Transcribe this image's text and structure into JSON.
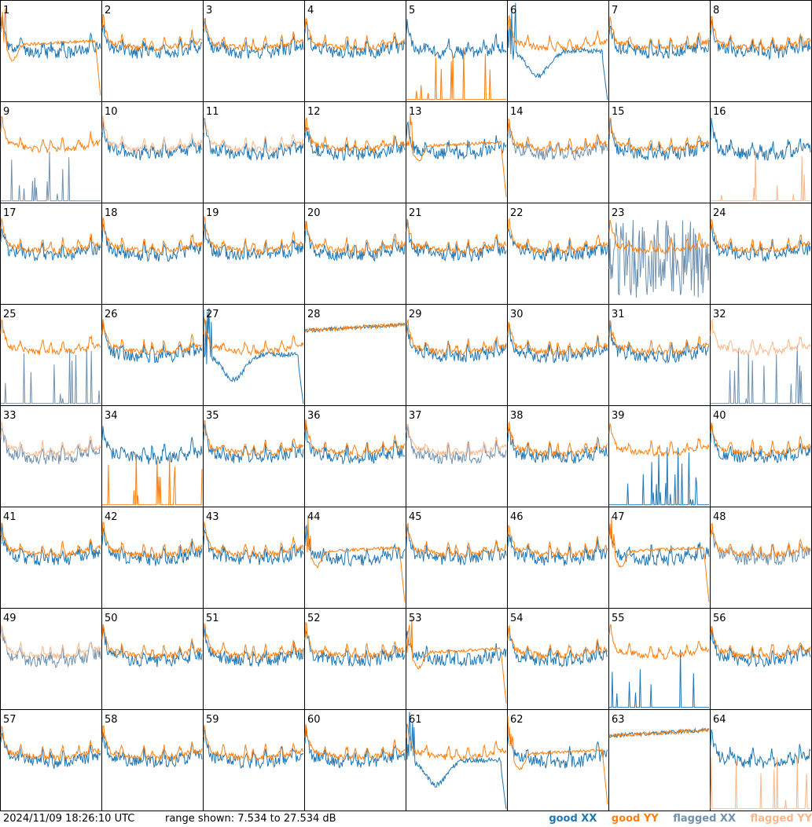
{
  "timestamp": "2024/11/09 18:26:10 UTC",
  "range_text": "range shown: 7.534 to 27.534 dB",
  "legend": {
    "good_xx": "good XX",
    "good_yy": "good YY",
    "flagged_xx": "flagged XX",
    "flagged_yy": "flagged YY"
  },
  "colors": {
    "good_xx": "#1f77b4",
    "good_yy": "#ff7f0e",
    "flagged_xx": "#6f91b0",
    "flagged_yy": "#f9b78a",
    "border": "#000000"
  },
  "chart_data": {
    "type": "line",
    "title": "",
    "xlabel": "",
    "ylabel": "",
    "ylim": [
      7.534,
      27.534
    ],
    "grid_rows": 8,
    "grid_cols": 8,
    "panels": [
      {
        "label": "1",
        "xx": "good",
        "yy": "good",
        "mode": "lowyy"
      },
      {
        "label": "2",
        "xx": "good",
        "yy": "good",
        "mode": "normal"
      },
      {
        "label": "3",
        "xx": "good",
        "yy": "good",
        "mode": "normal"
      },
      {
        "label": "4",
        "xx": "good",
        "yy": "good",
        "mode": "normal"
      },
      {
        "label": "5",
        "xx": "good",
        "yy": "good",
        "mode": "yyfloor"
      },
      {
        "label": "6",
        "xx": "good",
        "yy": "good",
        "mode": "dipxx"
      },
      {
        "label": "7",
        "xx": "good",
        "yy": "good",
        "mode": "normal"
      },
      {
        "label": "8",
        "xx": "good",
        "yy": "good",
        "mode": "normal"
      },
      {
        "label": "9",
        "xx": "flagged",
        "yy": "good",
        "mode": "xxfloor"
      },
      {
        "label": "10",
        "xx": "good",
        "yy": "flagged",
        "mode": "normal"
      },
      {
        "label": "11",
        "xx": "good",
        "yy": "flagged",
        "mode": "normal"
      },
      {
        "label": "12",
        "xx": "good",
        "yy": "good",
        "mode": "normal"
      },
      {
        "label": "13",
        "xx": "good",
        "yy": "good",
        "mode": "lowyy"
      },
      {
        "label": "14",
        "xx": "flagged",
        "yy": "good",
        "mode": "normal"
      },
      {
        "label": "15",
        "xx": "good",
        "yy": "good",
        "mode": "normal"
      },
      {
        "label": "16",
        "xx": "good",
        "yy": "flagged",
        "mode": "yyfloor"
      },
      {
        "label": "17",
        "xx": "good",
        "yy": "good",
        "mode": "normal"
      },
      {
        "label": "18",
        "xx": "good",
        "yy": "good",
        "mode": "normal"
      },
      {
        "label": "19",
        "xx": "good",
        "yy": "good",
        "mode": "normal"
      },
      {
        "label": "20",
        "xx": "good",
        "yy": "good",
        "mode": "normal"
      },
      {
        "label": "21",
        "xx": "good",
        "yy": "good",
        "mode": "normal"
      },
      {
        "label": "22",
        "xx": "good",
        "yy": "good",
        "mode": "normal"
      },
      {
        "label": "23",
        "xx": "flagged",
        "yy": "good",
        "mode": "xxnoisy"
      },
      {
        "label": "24",
        "xx": "good",
        "yy": "good",
        "mode": "normal"
      },
      {
        "label": "25",
        "xx": "flagged",
        "yy": "good",
        "mode": "xxfloor"
      },
      {
        "label": "26",
        "xx": "good",
        "yy": "good",
        "mode": "normal"
      },
      {
        "label": "27",
        "xx": "good",
        "yy": "good",
        "mode": "dipxx"
      },
      {
        "label": "28",
        "xx": "good",
        "yy": "good",
        "mode": "flat"
      },
      {
        "label": "29",
        "xx": "good",
        "yy": "good",
        "mode": "normal"
      },
      {
        "label": "30",
        "xx": "good",
        "yy": "good",
        "mode": "normal"
      },
      {
        "label": "31",
        "xx": "good",
        "yy": "good",
        "mode": "normal"
      },
      {
        "label": "32",
        "xx": "flagged",
        "yy": "flagged",
        "mode": "xxfloor"
      },
      {
        "label": "33",
        "xx": "flagged",
        "yy": "flagged",
        "mode": "normal"
      },
      {
        "label": "34",
        "xx": "good",
        "yy": "good",
        "mode": "yyfloor"
      },
      {
        "label": "35",
        "xx": "good",
        "yy": "good",
        "mode": "normal"
      },
      {
        "label": "36",
        "xx": "good",
        "yy": "good",
        "mode": "normal"
      },
      {
        "label": "37",
        "xx": "flagged",
        "yy": "flagged",
        "mode": "normal"
      },
      {
        "label": "38",
        "xx": "good",
        "yy": "good",
        "mode": "normal"
      },
      {
        "label": "39",
        "xx": "good",
        "yy": "good",
        "mode": "xxfloor"
      },
      {
        "label": "40",
        "xx": "good",
        "yy": "good",
        "mode": "normal"
      },
      {
        "label": "41",
        "xx": "good",
        "yy": "good",
        "mode": "normal"
      },
      {
        "label": "42",
        "xx": "good",
        "yy": "good",
        "mode": "normal"
      },
      {
        "label": "43",
        "xx": "good",
        "yy": "good",
        "mode": "normal"
      },
      {
        "label": "44",
        "xx": "good",
        "yy": "good",
        "mode": "lowyy"
      },
      {
        "label": "45",
        "xx": "good",
        "yy": "good",
        "mode": "normal"
      },
      {
        "label": "46",
        "xx": "good",
        "yy": "good",
        "mode": "normal"
      },
      {
        "label": "47",
        "xx": "good",
        "yy": "good",
        "mode": "lowyy"
      },
      {
        "label": "48",
        "xx": "flagged",
        "yy": "good",
        "mode": "normal"
      },
      {
        "label": "49",
        "xx": "flagged",
        "yy": "flagged",
        "mode": "normal"
      },
      {
        "label": "50",
        "xx": "good",
        "yy": "good",
        "mode": "normal"
      },
      {
        "label": "51",
        "xx": "good",
        "yy": "good",
        "mode": "normal"
      },
      {
        "label": "52",
        "xx": "good",
        "yy": "good",
        "mode": "normal"
      },
      {
        "label": "53",
        "xx": "good",
        "yy": "good",
        "mode": "lowyy"
      },
      {
        "label": "54",
        "xx": "good",
        "yy": "good",
        "mode": "normal"
      },
      {
        "label": "55",
        "xx": "good",
        "yy": "good",
        "mode": "xxfloor"
      },
      {
        "label": "56",
        "xx": "good",
        "yy": "good",
        "mode": "normal"
      },
      {
        "label": "57",
        "xx": "good",
        "yy": "good",
        "mode": "normal"
      },
      {
        "label": "58",
        "xx": "good",
        "yy": "good",
        "mode": "normal"
      },
      {
        "label": "59",
        "xx": "good",
        "yy": "good",
        "mode": "normal"
      },
      {
        "label": "60",
        "xx": "good",
        "yy": "good",
        "mode": "normal"
      },
      {
        "label": "61",
        "xx": "good",
        "yy": "good",
        "mode": "dipxx"
      },
      {
        "label": "62",
        "xx": "good",
        "yy": "good",
        "mode": "lowyy"
      },
      {
        "label": "63",
        "xx": "good",
        "yy": "good",
        "mode": "flat"
      },
      {
        "label": "64",
        "xx": "good",
        "yy": "flagged",
        "mode": "yyfloor"
      }
    ]
  }
}
